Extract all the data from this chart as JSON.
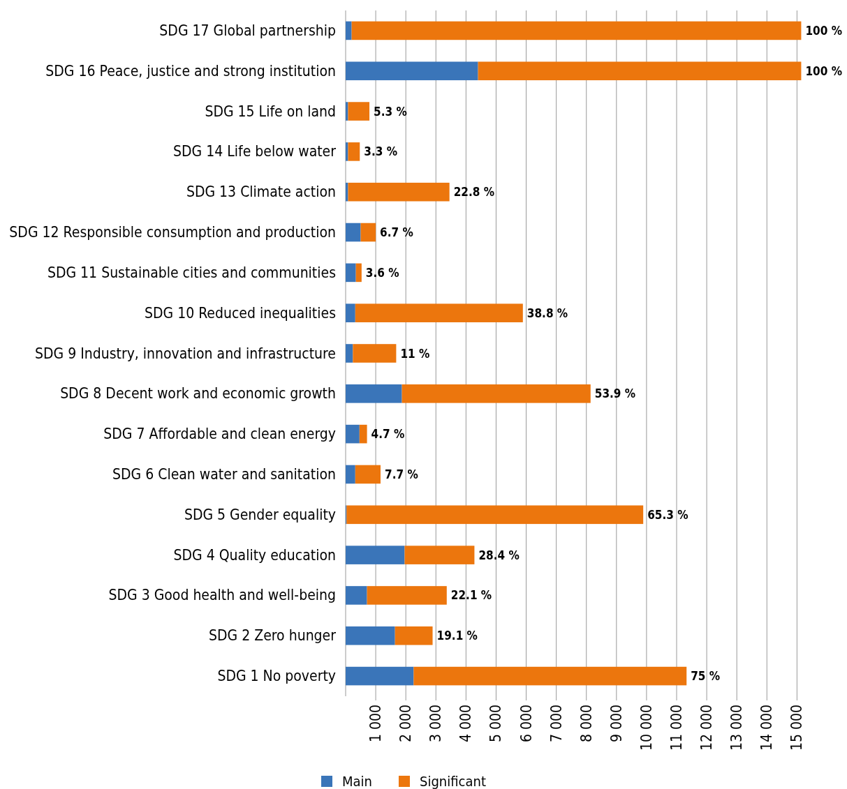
{
  "chart_data": {
    "type": "bar",
    "orientation": "horizontal",
    "stacked": true,
    "categories": [
      "SDG 17 Global partnership",
      "SDG 16 Peace, justice and strong institution",
      "SDG 15 Life on land",
      "SDG 14 Life below water",
      "SDG 13 Climate action",
      "SDG 12 Responsible consumption and production",
      "SDG 11 Sustainable cities and communities",
      "SDG 10 Reduced inequalities",
      "SDG 9 Industry, innovation and infrastructure",
      "SDG 8 Decent work and economic growth",
      "SDG 7 Affordable and clean energy",
      "SDG 6 Clean water and sanitation",
      "SDG 5 Gender equality",
      "SDG 4 Quality education",
      "SDG 3 Good health and well-being",
      "SDG 2 Zero hunger",
      "SDG 1 No poverty"
    ],
    "series": [
      {
        "name": "Main",
        "color": "#3a75b9",
        "values": [
          200,
          4400,
          80,
          80,
          80,
          500,
          340,
          320,
          240,
          1870,
          460,
          320,
          30,
          1960,
          710,
          1640,
          2260
        ]
      },
      {
        "name": "Significant",
        "color": "#ec760d",
        "values": [
          14940,
          10740,
          710,
          390,
          3370,
          500,
          190,
          5570,
          1440,
          6270,
          250,
          840,
          9860,
          2320,
          2650,
          1250,
          9070
        ]
      }
    ],
    "annotations": [
      {
        "text": "100 %",
        "x": 15140,
        "y": "SDG 17 Global partnership"
      },
      {
        "text": "100 %",
        "x": 15140,
        "y": "SDG 16 Peace, justice and strong institution"
      },
      {
        "text": "5.3 %",
        "x": 790,
        "y": "SDG 15 Life on land"
      },
      {
        "text": "3.3 %",
        "x": 470,
        "y": "SDG 14 Life below water"
      },
      {
        "text": "22.8 %",
        "x": 3450,
        "y": "SDG 13 Climate action"
      },
      {
        "text": "6.7 %",
        "x": 1000,
        "y": "SDG 12 Responsible consumption and production"
      },
      {
        "text": "3.6 %",
        "x": 530,
        "y": "SDG 11 Sustainable cities and communities"
      },
      {
        "text": "38.8 %",
        "x": 5890,
        "y": "SDG 10 Reduced inequalities"
      },
      {
        "text": "11 %",
        "x": 1680,
        "y": "SDG 9 Industry, innovation and infrastructure"
      },
      {
        "text": "53.9 %",
        "x": 8140,
        "y": "SDG 8 Decent work and economic growth"
      },
      {
        "text": "4.7 %",
        "x": 710,
        "y": "SDG 7 Affordable and clean energy"
      },
      {
        "text": "7.7 %",
        "x": 1160,
        "y": "SDG 6 Clean water and sanitation"
      },
      {
        "text": "65.3 %",
        "x": 9890,
        "y": "SDG 5 Gender equality"
      },
      {
        "text": "28.4 %",
        "x": 4280,
        "y": "SDG 4 Quality education"
      },
      {
        "text": "22.1 %",
        "x": 3360,
        "y": "SDG 3 Good health and well-being"
      },
      {
        "text": "19.1 %",
        "x": 2890,
        "y": "SDG 2 Zero hunger"
      },
      {
        "text": "75 %",
        "x": 11330,
        "y": "SDG 1 No poverty"
      }
    ],
    "xlim": [
      0,
      15200
    ],
    "xticks": [
      {
        "value": 1000,
        "label": "1 000"
      },
      {
        "value": 2000,
        "label": "2 000"
      },
      {
        "value": 3000,
        "label": "3 000"
      },
      {
        "value": 4000,
        "label": "4 000"
      },
      {
        "value": 5000,
        "label": "5 000"
      },
      {
        "value": 6000,
        "label": "6 000"
      },
      {
        "value": 7000,
        "label": "7 000"
      },
      {
        "value": 8000,
        "label": "8 000"
      },
      {
        "value": 9000,
        "label": "9 000"
      },
      {
        "value": 10000,
        "label": "10 000"
      },
      {
        "value": 11000,
        "label": "11 000"
      },
      {
        "value": 12000,
        "label": "12 000"
      },
      {
        "value": 13000,
        "label": "13 000"
      },
      {
        "value": 14000,
        "label": "14 000"
      },
      {
        "value": 15000,
        "label": "15 000"
      }
    ],
    "grid": "x",
    "legend": "bottom"
  }
}
